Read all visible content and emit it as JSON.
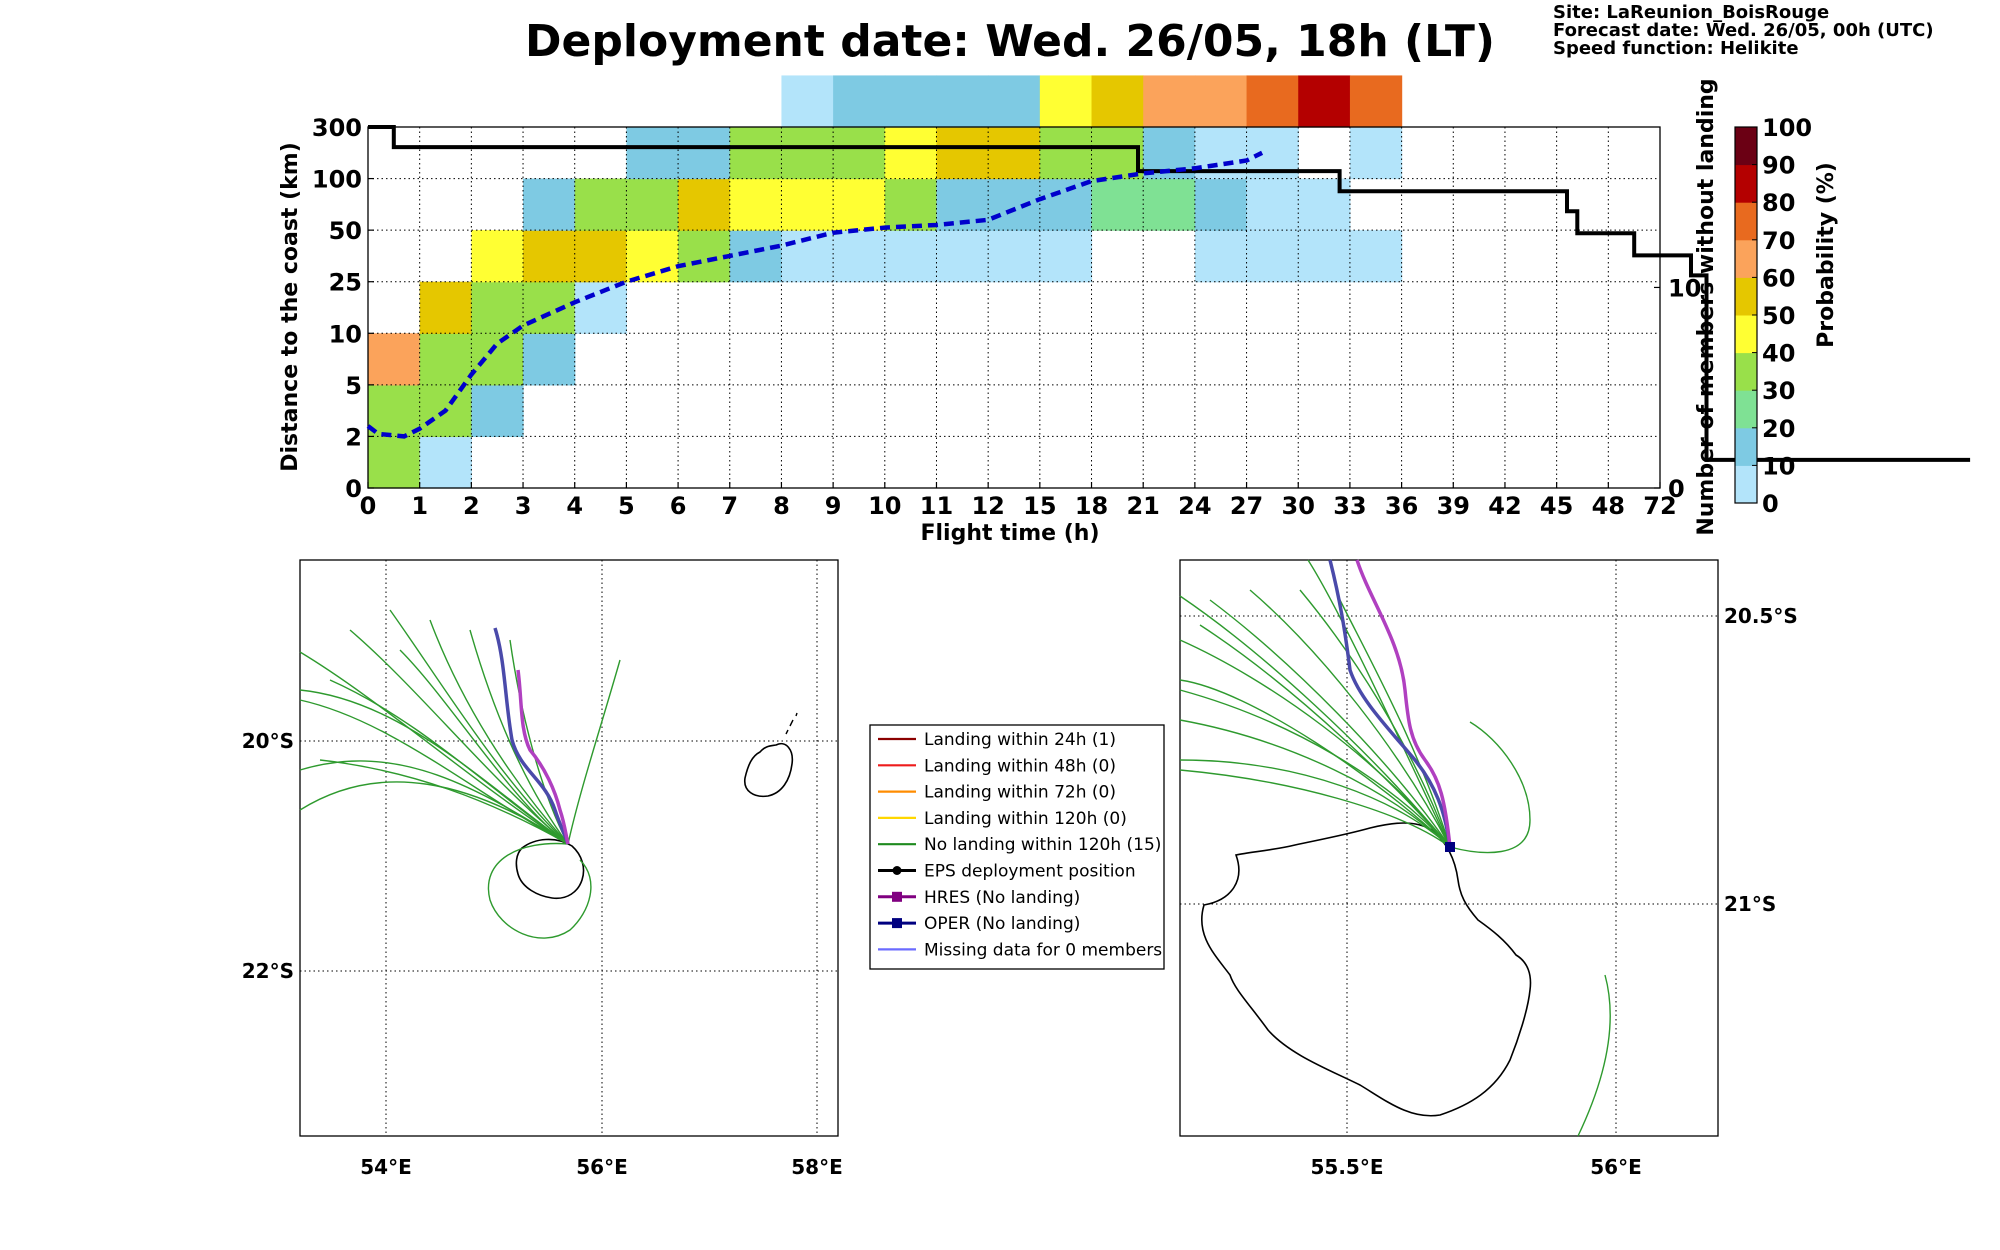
{
  "title": "Deployment date: Wed. 26/05, 18h (LT)",
  "info": [
    "Site: LaReunion_BoisRouge",
    "Forecast date: Wed. 26/05, 00h (UTC)",
    "Speed function: Helikite"
  ],
  "chart_data": [
    {
      "type": "heatmap",
      "xlabel": "Flight time (h)",
      "ylabel": "Distance to the coast (km)",
      "y2label": "Number of members without landing",
      "x_ticks": [
        "0",
        "1",
        "2",
        "3",
        "4",
        "5",
        "6",
        "7",
        "8",
        "9",
        "10",
        "11",
        "12",
        "15",
        "18",
        "21",
        "24",
        "27",
        "30",
        "33",
        "36",
        "39",
        "42",
        "45",
        "48",
        "72"
      ],
      "y_ticks": [
        "0",
        "2",
        "5",
        "10",
        "25",
        "50",
        "100",
        "300"
      ],
      "y2_ticks": [
        "0",
        "10"
      ],
      "y2_range": [
        0,
        18
      ],
      "colorbar": {
        "label": "Probability (%)",
        "ticks": [
          "0",
          "10",
          "20",
          "30",
          "40",
          "50",
          "60",
          "70",
          "80",
          "90",
          "100"
        ],
        "colors": [
          "#b3e4fa",
          "#7ecae3",
          "#7fe194",
          "#99e04a",
          "#ffff33",
          "#e5c700",
          "#fba35b",
          "#e86a1f",
          "#b40000",
          "#6b0014"
        ]
      },
      "grid": true,
      "cells": [
        [
          0,
          0,
          3
        ],
        [
          0,
          1,
          3
        ],
        [
          0,
          2,
          6
        ],
        [
          1,
          0,
          0
        ],
        [
          1,
          1,
          3
        ],
        [
          1,
          2,
          3
        ],
        [
          1,
          3,
          5
        ],
        [
          2,
          1,
          1
        ],
        [
          2,
          2,
          3
        ],
        [
          2,
          3,
          3
        ],
        [
          2,
          4,
          4
        ],
        [
          3,
          2,
          1
        ],
        [
          3,
          3,
          3
        ],
        [
          3,
          4,
          5
        ],
        [
          3,
          5,
          1
        ],
        [
          4,
          3,
          0
        ],
        [
          4,
          4,
          5
        ],
        [
          4,
          5,
          3
        ],
        [
          5,
          4,
          4
        ],
        [
          5,
          5,
          3
        ],
        [
          5,
          6,
          1
        ],
        [
          6,
          4,
          3
        ],
        [
          6,
          5,
          5
        ],
        [
          6,
          6,
          1
        ],
        [
          7,
          4,
          1
        ],
        [
          7,
          5,
          4
        ],
        [
          7,
          6,
          3
        ],
        [
          8,
          4,
          0
        ],
        [
          8,
          5,
          4
        ],
        [
          8,
          6,
          3
        ],
        [
          8,
          7,
          0
        ],
        [
          9,
          4,
          0
        ],
        [
          9,
          5,
          4
        ],
        [
          9,
          6,
          3
        ],
        [
          9,
          7,
          1
        ],
        [
          10,
          4,
          0
        ],
        [
          10,
          5,
          3
        ],
        [
          10,
          6,
          4
        ],
        [
          10,
          7,
          1
        ],
        [
          11,
          4,
          0
        ],
        [
          11,
          5,
          1
        ],
        [
          11,
          6,
          5
        ],
        [
          11,
          7,
          1
        ],
        [
          12,
          4,
          0
        ],
        [
          12,
          5,
          1
        ],
        [
          12,
          6,
          5
        ],
        [
          12,
          7,
          1
        ],
        [
          13,
          4,
          0
        ],
        [
          13,
          5,
          1
        ],
        [
          13,
          6,
          3
        ],
        [
          13,
          7,
          4
        ],
        [
          14,
          5,
          2
        ],
        [
          14,
          6,
          3
        ],
        [
          14,
          7,
          5
        ],
        [
          15,
          5,
          2
        ],
        [
          15,
          6,
          1
        ],
        [
          15,
          7,
          6
        ],
        [
          16,
          4,
          0
        ],
        [
          16,
          5,
          1
        ],
        [
          16,
          6,
          0
        ],
        [
          16,
          7,
          6
        ],
        [
          17,
          4,
          0
        ],
        [
          17,
          5,
          0
        ],
        [
          17,
          6,
          0
        ],
        [
          17,
          7,
          7
        ],
        [
          18,
          4,
          0
        ],
        [
          18,
          5,
          0
        ],
        [
          18,
          7,
          8
        ],
        [
          19,
          4,
          0
        ],
        [
          19,
          6,
          0
        ],
        [
          19,
          7,
          7
        ]
      ],
      "series": [
        {
          "name": "members without landing",
          "style": "solid",
          "color": "#000000",
          "points": [
            [
              0,
              18
            ],
            [
              0.5,
              18
            ],
            [
              0.5,
              17
            ],
            [
              14.9,
              17
            ],
            [
              14.9,
              15.8
            ],
            [
              18.8,
              15.8
            ],
            [
              18.8,
              14.8
            ],
            [
              23.2,
              14.8
            ],
            [
              23.2,
              13.8
            ],
            [
              23.4,
              13.8
            ],
            [
              23.4,
              12.7
            ],
            [
              24.5,
              12.7
            ],
            [
              24.5,
              11.6
            ],
            [
              25.6,
              11.6
            ],
            [
              25.6,
              10.6
            ],
            [
              25.9,
              10.6
            ],
            [
              25.9,
              1.4
            ],
            [
              31,
              1.4
            ]
          ]
        },
        {
          "name": "median distance",
          "style": "dashed",
          "color": "#0000cc",
          "points": [
            [
              0,
              1.2
            ],
            [
              0.2,
              1.05
            ],
            [
              0.7,
              1.0
            ],
            [
              1,
              1.15
            ],
            [
              1.5,
              1.5
            ],
            [
              2,
              2.2
            ],
            [
              2.5,
              2.8
            ],
            [
              3,
              3.15
            ],
            [
              4,
              3.6
            ],
            [
              5,
              4.0
            ],
            [
              6,
              4.3
            ],
            [
              7,
              4.5
            ],
            [
              8,
              4.7
            ],
            [
              9,
              4.95
            ],
            [
              10,
              5.05
            ],
            [
              11,
              5.1
            ],
            [
              12,
              5.2
            ],
            [
              13,
              5.6
            ],
            [
              14,
              5.95
            ],
            [
              15,
              6.1
            ],
            [
              16,
              6.2
            ],
            [
              17,
              6.35
            ],
            [
              17.3,
              6.5
            ]
          ]
        }
      ]
    },
    {
      "type": "map",
      "x_ticks": [
        "54°E",
        "56°E",
        "58°E"
      ],
      "y_ticks": [
        "20°S",
        "22°S"
      ]
    },
    {
      "type": "map",
      "x_ticks": [
        "55.5°E",
        "56°E"
      ],
      "y_ticks": [
        "20.5°S",
        "21°S"
      ]
    }
  ],
  "legend": [
    {
      "label": "Landing within 24h (1)",
      "color": "#8b0000",
      "marker": "none"
    },
    {
      "label": "Landing within 48h (0)",
      "color": "#ee1c1c",
      "marker": "none"
    },
    {
      "label": "Landing within 72h (0)",
      "color": "#ff8c00",
      "marker": "none"
    },
    {
      "label": "Landing within 120h (0)",
      "color": "#ffd700",
      "marker": "none"
    },
    {
      "label": "No landing within 120h (15)",
      "color": "#1e8a1e",
      "marker": "none"
    },
    {
      "label": "EPS deployment position",
      "color": "#000000",
      "marker": "circle"
    },
    {
      "label": "HRES (No landing)",
      "color": "#800080",
      "marker": "square"
    },
    {
      "label": "OPER (No landing)",
      "color": "#000080",
      "marker": "square"
    },
    {
      "label": "Missing data for 0 members",
      "color": "#6b6bff",
      "marker": "none"
    }
  ]
}
